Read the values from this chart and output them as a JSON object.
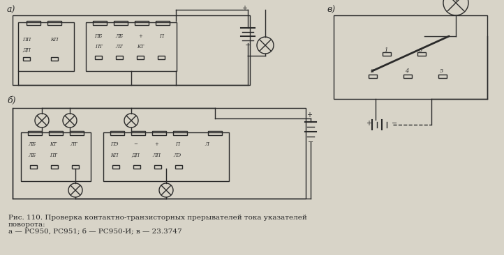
{
  "bg_color": "#d8d4c8",
  "line_color": "#2a2a2a",
  "title_text": "Рис. 110. Проверка контактно-транзисторных прерывателей тока указателей\nповорота:\na — РС950, РС951; б — РС950-И; в — 23.3747",
  "label_a": "а)",
  "label_b": "б)",
  "label_v": "в)"
}
